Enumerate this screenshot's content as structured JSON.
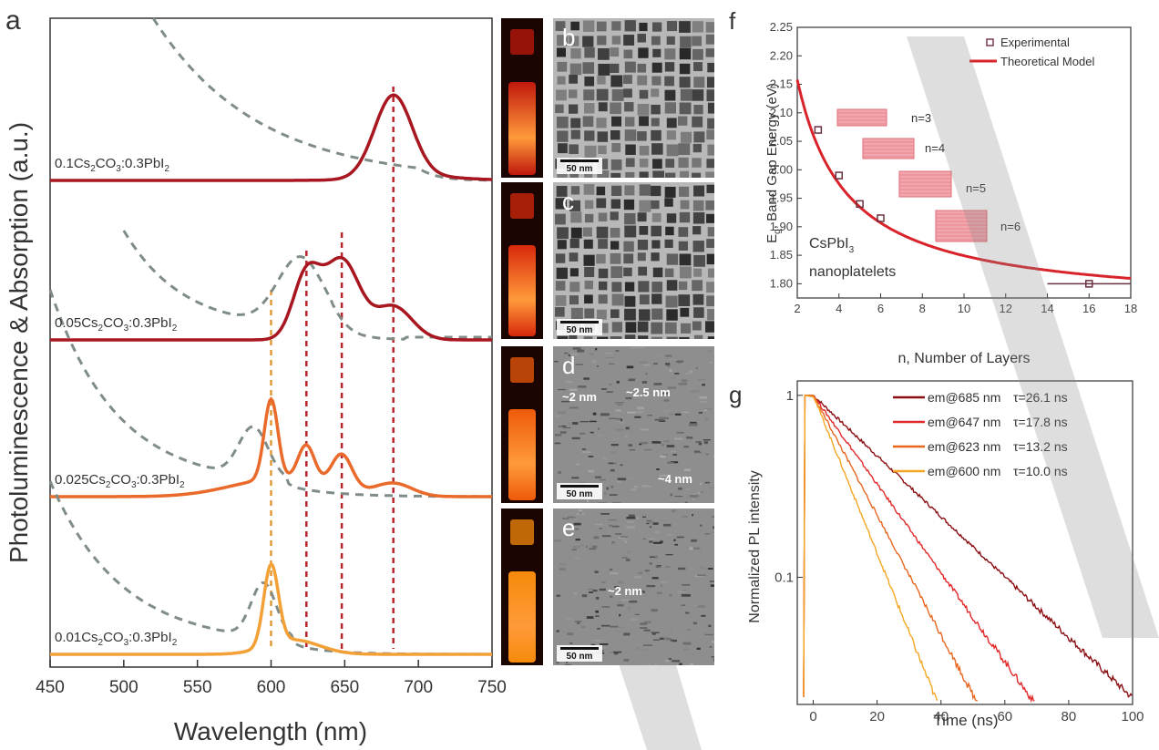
{
  "panel_a": {
    "letter": "a",
    "xlabel": "Wavelength (nm)",
    "ylabel": "Photoluminescence & Absorption (a.u.)",
    "xlim": [
      450,
      750
    ],
    "xticks": [
      "450",
      "500",
      "550",
      "600",
      "650",
      "700",
      "750"
    ],
    "samples": [
      {
        "pre": "0.1Cs",
        "s1": "2",
        "mid": "CO",
        "s2": "3",
        "post": ":0.3PbI",
        "s3": "2"
      },
      {
        "pre": "0.05Cs",
        "s1": "2",
        "mid": "CO",
        "s2": "3",
        "post": ":0.3PbI",
        "s3": "2"
      },
      {
        "pre": "0.025Cs",
        "s1": "2",
        "mid": "CO",
        "s2": "3",
        "post": ":0.3PbI",
        "s3": "2"
      },
      {
        "pre": "0.01Cs",
        "s1": "2",
        "mid": "CO",
        "s2": "3",
        "post": ":0.3PbI",
        "s3": "2"
      }
    ],
    "colors": {
      "pl": [
        "#a8161f",
        "#a8161f",
        "#e96a2a",
        "#f3a037"
      ],
      "abs": "#7f8c87"
    }
  },
  "tem_panels": [
    {
      "letter": "b",
      "scale": "50 nm",
      "annotations": []
    },
    {
      "letter": "c",
      "scale": "50 nm",
      "annotations": []
    },
    {
      "letter": "d",
      "scale": "50 nm",
      "annotations": [
        "~2.5 nm",
        "~2 nm",
        "~4 nm"
      ]
    },
    {
      "letter": "e",
      "scale": "50 nm",
      "annotations": [
        "~2 nm"
      ]
    }
  ],
  "panel_f": {
    "letter": "f",
    "xlabel": "n, Number of Layers",
    "ylabel_main": "E",
    "ylabel_sub": "g",
    "ylabel_rest": ", Band Gap Energy (eV)",
    "xticks": [
      "2",
      "4",
      "6",
      "8",
      "10",
      "12",
      "14",
      "16",
      "18"
    ],
    "yticks": [
      "1.80",
      "1.85",
      "1.90",
      "1.95",
      "2.00",
      "2.05",
      "2.10",
      "2.15",
      "2.20",
      "2.25"
    ],
    "legend": [
      "Experimental",
      "Theoretical Model"
    ],
    "material_main": "CsPbI",
    "material_sub": "3",
    "material_line2": "nanoplatelets",
    "layer_labels": [
      "n=3",
      "n=4",
      "n=5",
      "n=6"
    ],
    "color": "#d8232a"
  },
  "panel_g": {
    "letter": "g",
    "xlabel": "Time (ns)",
    "ylabel": "Normalized PL intensity",
    "xticks": [
      "0",
      "20",
      "40",
      "60",
      "80",
      "100"
    ],
    "yticks": [
      "1",
      "0.1"
    ],
    "legend": [
      {
        "em": "em@685 nm",
        "tau": "τ=26.1 ns",
        "color": "#8b0f12"
      },
      {
        "em": "em@647 nm",
        "tau": "τ=17.8 ns",
        "color": "#e2292a"
      },
      {
        "em": "em@623 nm",
        "tau": "τ=13.2 ns",
        "color": "#e8671f"
      },
      {
        "em": "em@600 nm",
        "tau": "τ=10.0 ns",
        "color": "#f5a623"
      }
    ]
  },
  "chart_data": [
    {
      "type": "line",
      "panel": "a",
      "xlabel": "Wavelength (nm)",
      "ylabel": "Photoluminescence & Absorption (a.u.)",
      "xlim": [
        450,
        750
      ],
      "series": [
        {
          "name": "0.1Cs2CO3:0.3PbI2",
          "pl_peaks_nm": [
            683
          ]
        },
        {
          "name": "0.05Cs2CO3:0.3PbI2",
          "pl_peaks_nm": [
            624,
            647,
            683
          ]
        },
        {
          "name": "0.025Cs2CO3:0.3PbI2",
          "pl_peaks_nm": [
            600,
            624,
            647,
            683
          ]
        },
        {
          "name": "0.01Cs2CO3:0.3PbI2",
          "pl_peaks_nm": [
            600
          ]
        }
      ],
      "reference_lines_nm": [
        600,
        624,
        648,
        683
      ]
    },
    {
      "type": "scatter",
      "panel": "f",
      "xlabel": "n, Number of Layers",
      "ylabel": "Eg, Band Gap Energy (eV)",
      "xlim": [
        2,
        18
      ],
      "ylim": [
        1.775,
        2.25
      ],
      "series": [
        {
          "name": "Experimental",
          "x": [
            3,
            4,
            5,
            6,
            16
          ],
          "y": [
            2.07,
            1.99,
            1.94,
            1.915,
            1.8
          ],
          "x_err": [
            0,
            0,
            0,
            0,
            2
          ]
        },
        {
          "name": "Theoretical Model",
          "x": [
            2,
            3,
            4,
            5,
            6,
            8,
            10,
            12,
            14,
            16,
            18
          ],
          "y": [
            2.2,
            2.07,
            1.99,
            1.94,
            1.912,
            1.875,
            1.852,
            1.836,
            1.823,
            1.812,
            1.803
          ]
        }
      ]
    },
    {
      "type": "line",
      "panel": "g",
      "xlabel": "Time (ns)",
      "ylabel": "Normalized PL intensity",
      "xlim": [
        -5,
        100
      ],
      "ylim": [
        0.02,
        1.2
      ],
      "yscale": "log",
      "series": [
        {
          "name": "em@685 nm",
          "tau_ns": 26.1
        },
        {
          "name": "em@647 nm",
          "tau_ns": 17.8
        },
        {
          "name": "em@623 nm",
          "tau_ns": 13.2
        },
        {
          "name": "em@600 nm",
          "tau_ns": 10.0
        }
      ]
    }
  ]
}
